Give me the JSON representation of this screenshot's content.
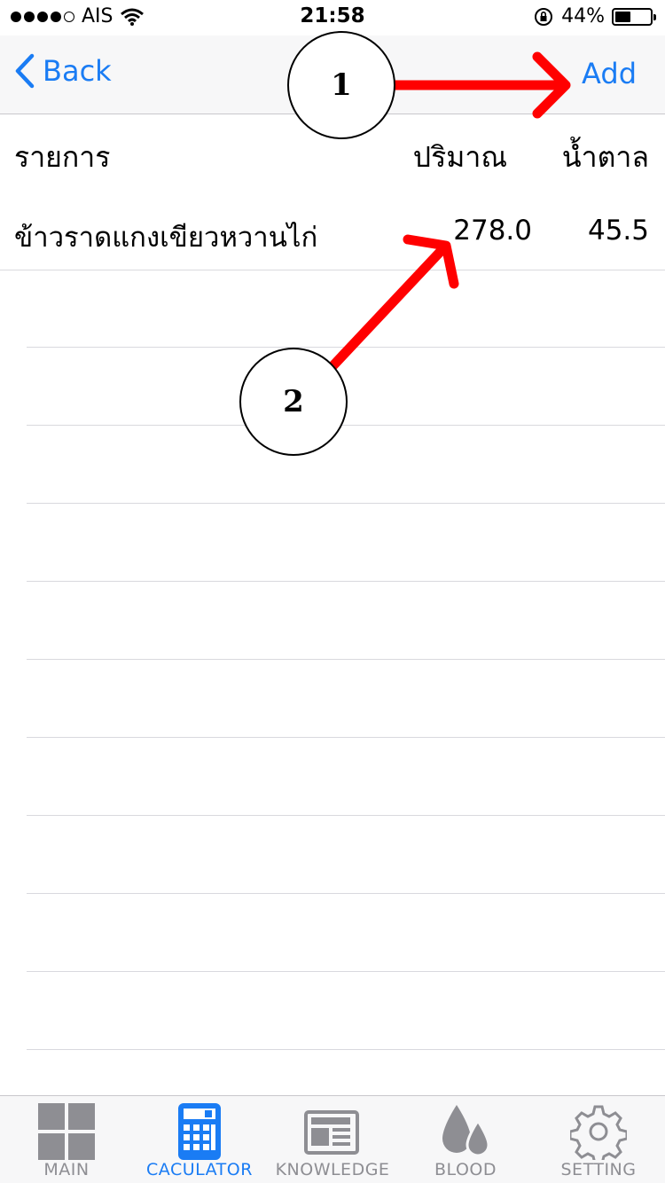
{
  "status_bar": {
    "carrier": "AIS",
    "time": "21:58",
    "battery_percent": "44%",
    "battery_level": 0.44,
    "signal_bars_filled": 4,
    "signal_bars_total": 5
  },
  "nav": {
    "back_label": "Back",
    "add_label": "Add"
  },
  "table": {
    "headers": {
      "item": "รายการ",
      "quantity": "ปริมาณ",
      "sugar": "น้ำตาล"
    },
    "rows": [
      {
        "item": "ข้าวราดแกงเขียวหวานไก่",
        "quantity": "278.0",
        "sugar": "45.5"
      }
    ]
  },
  "annotations": {
    "callout_1": "1",
    "callout_2": "2",
    "arrow_color": "#ff0000"
  },
  "tabs": [
    {
      "label": "MAIN",
      "icon": "grid-icon",
      "active": false
    },
    {
      "label": "CACULATOR",
      "icon": "calculator-icon",
      "active": true
    },
    {
      "label": "KNOWLEDGE",
      "icon": "newspaper-icon",
      "active": false
    },
    {
      "label": "BLOOD",
      "icon": "blood-drop-icon",
      "active": false
    },
    {
      "label": "SETTING",
      "icon": "gear-icon",
      "active": false
    }
  ],
  "colors": {
    "accent": "#1a7cf4",
    "inactive": "#8e8e93",
    "bar_background": "#f7f7f8"
  }
}
